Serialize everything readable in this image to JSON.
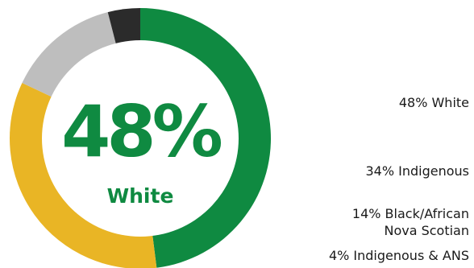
{
  "chart_data": {
    "type": "pie",
    "variant": "donut",
    "center": {
      "value": "48%",
      "label": "White"
    },
    "slices": [
      {
        "name": "White",
        "value": 48,
        "color": "#0f8a41"
      },
      {
        "name": "Indigenous",
        "value": 34,
        "color": "#e9b525"
      },
      {
        "name": "Black/African Nova Scotian",
        "value": 14,
        "color": "#bebebe"
      },
      {
        "name": "Indigenous & ANS",
        "value": 4,
        "color": "#2b2b2b"
      }
    ],
    "legend": {
      "placement": "right",
      "entries": [
        {
          "lines": [
            "48% White"
          ]
        },
        {
          "lines": [
            "34% Indigenous"
          ]
        },
        {
          "lines": [
            "14% Black/African",
            "Nova Scotian"
          ]
        },
        {
          "lines": [
            "4% Indigenous & ANS"
          ]
        }
      ]
    },
    "center_color": "#0f8a41"
  }
}
